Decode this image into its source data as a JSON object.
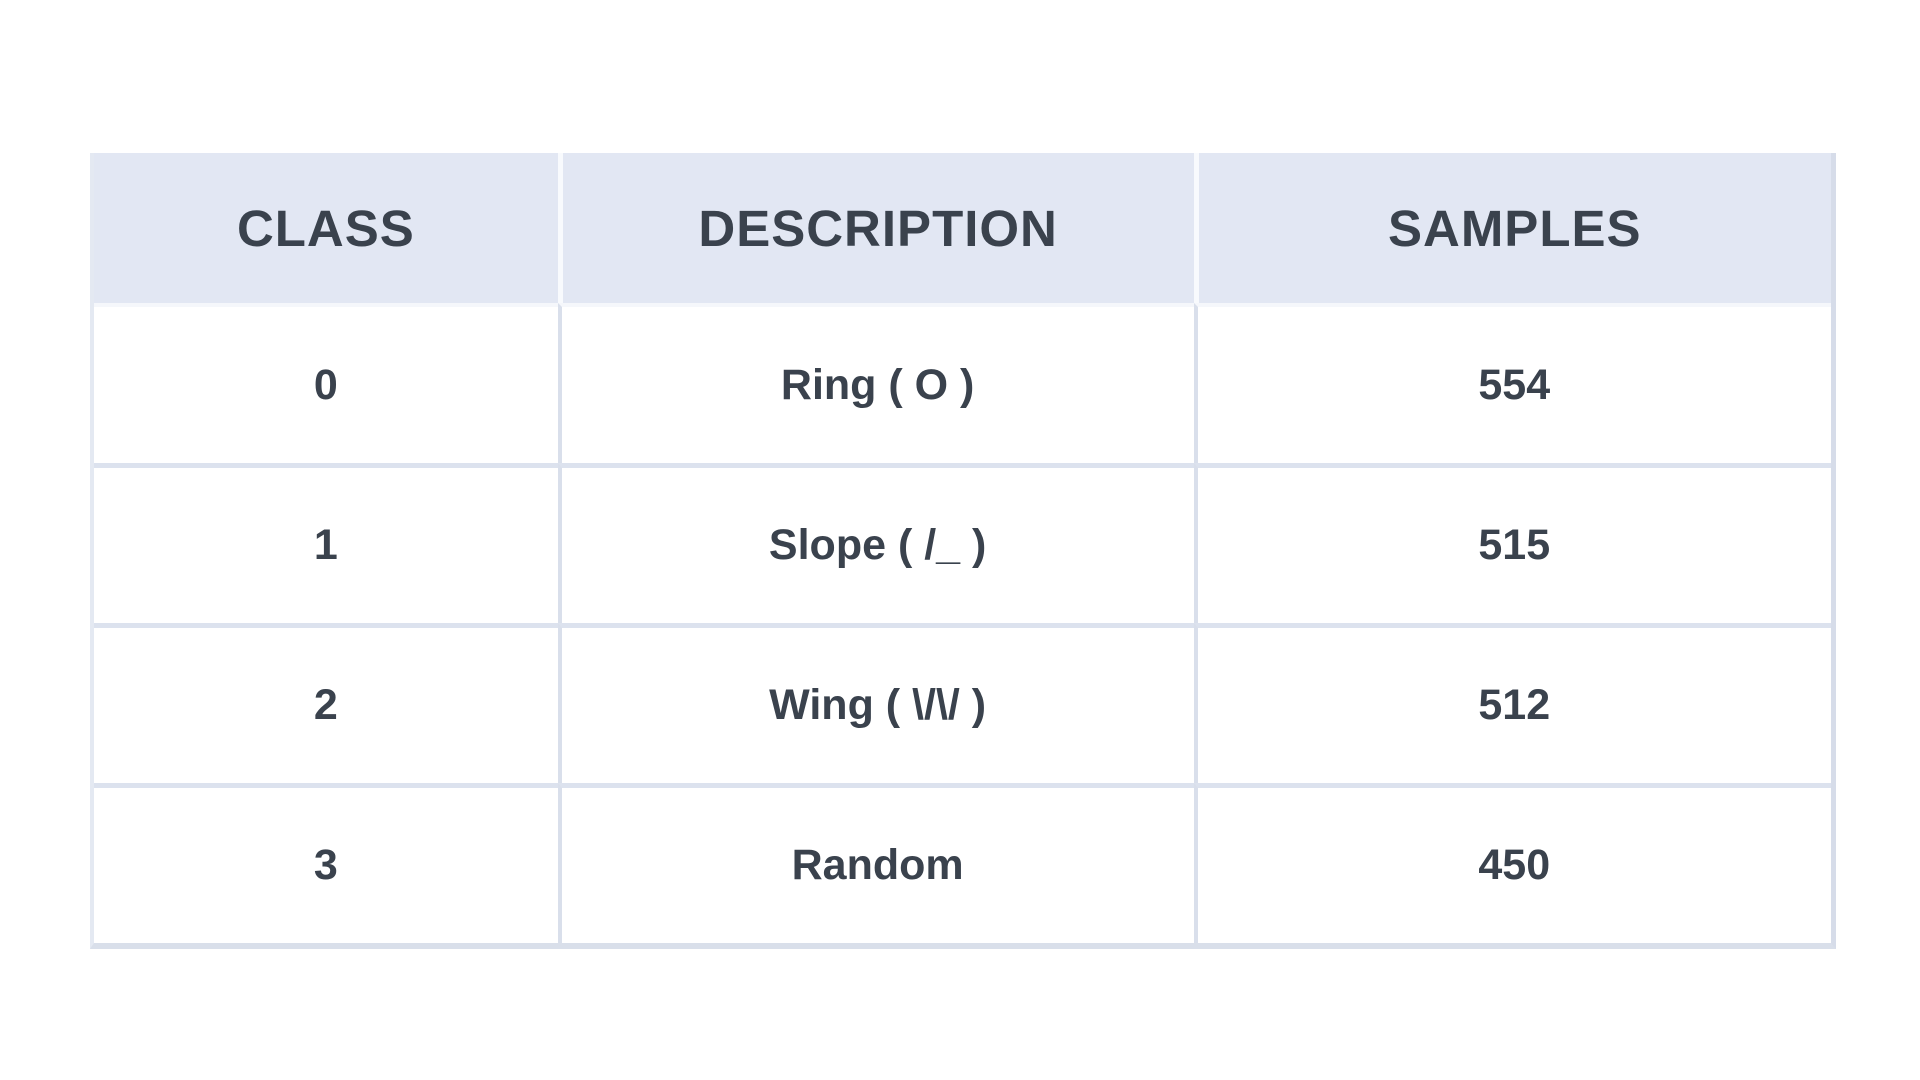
{
  "table": {
    "columns": [
      {
        "label": "CLASS"
      },
      {
        "label": "DESCRIPTION"
      },
      {
        "label": "SAMPLES"
      }
    ],
    "rows": [
      {
        "class": "0",
        "description": "Ring ( O )",
        "samples": "554"
      },
      {
        "class": "1",
        "description": "Slope ( /_ )",
        "samples": "515"
      },
      {
        "class": "2",
        "description": "Wing ( \\/\\/ )",
        "samples": "512"
      },
      {
        "class": "3",
        "description": "Random",
        "samples": "450"
      }
    ]
  },
  "colors": {
    "header_background": "#e2e7f3",
    "text": "#3a424d",
    "row_separator": "#dce2ee",
    "column_divider": "#d9dfeb",
    "page_background": "#ffffff"
  },
  "chart_data": {
    "type": "table",
    "title": "",
    "columns": [
      "CLASS",
      "DESCRIPTION",
      "SAMPLES"
    ],
    "rows": [
      [
        0,
        "Ring ( O )",
        554
      ],
      [
        1,
        "Slope ( /_ )",
        515
      ],
      [
        2,
        "Wing ( \\/\\/ )",
        512
      ],
      [
        3,
        "Random",
        450
      ]
    ]
  }
}
